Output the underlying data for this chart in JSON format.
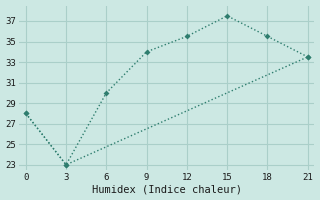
{
  "line1_x": [
    0,
    3,
    6,
    9,
    12,
    15,
    18,
    21
  ],
  "line1_y": [
    28,
    23,
    30,
    34,
    35.5,
    37.5,
    35.5,
    33.5
  ],
  "line2_x": [
    0,
    3,
    21
  ],
  "line2_y": [
    28,
    23,
    33.5
  ],
  "color": "#2e7d6e",
  "xlabel": "Humidex (Indice chaleur)",
  "background_color": "#cce8e3",
  "grid_color": "#aacfc9",
  "xlim": [
    -0.5,
    21.5
  ],
  "ylim": [
    22.5,
    38.5
  ],
  "xticks": [
    0,
    3,
    6,
    9,
    12,
    15,
    18,
    21
  ],
  "yticks": [
    23,
    25,
    27,
    29,
    31,
    33,
    35,
    37
  ]
}
